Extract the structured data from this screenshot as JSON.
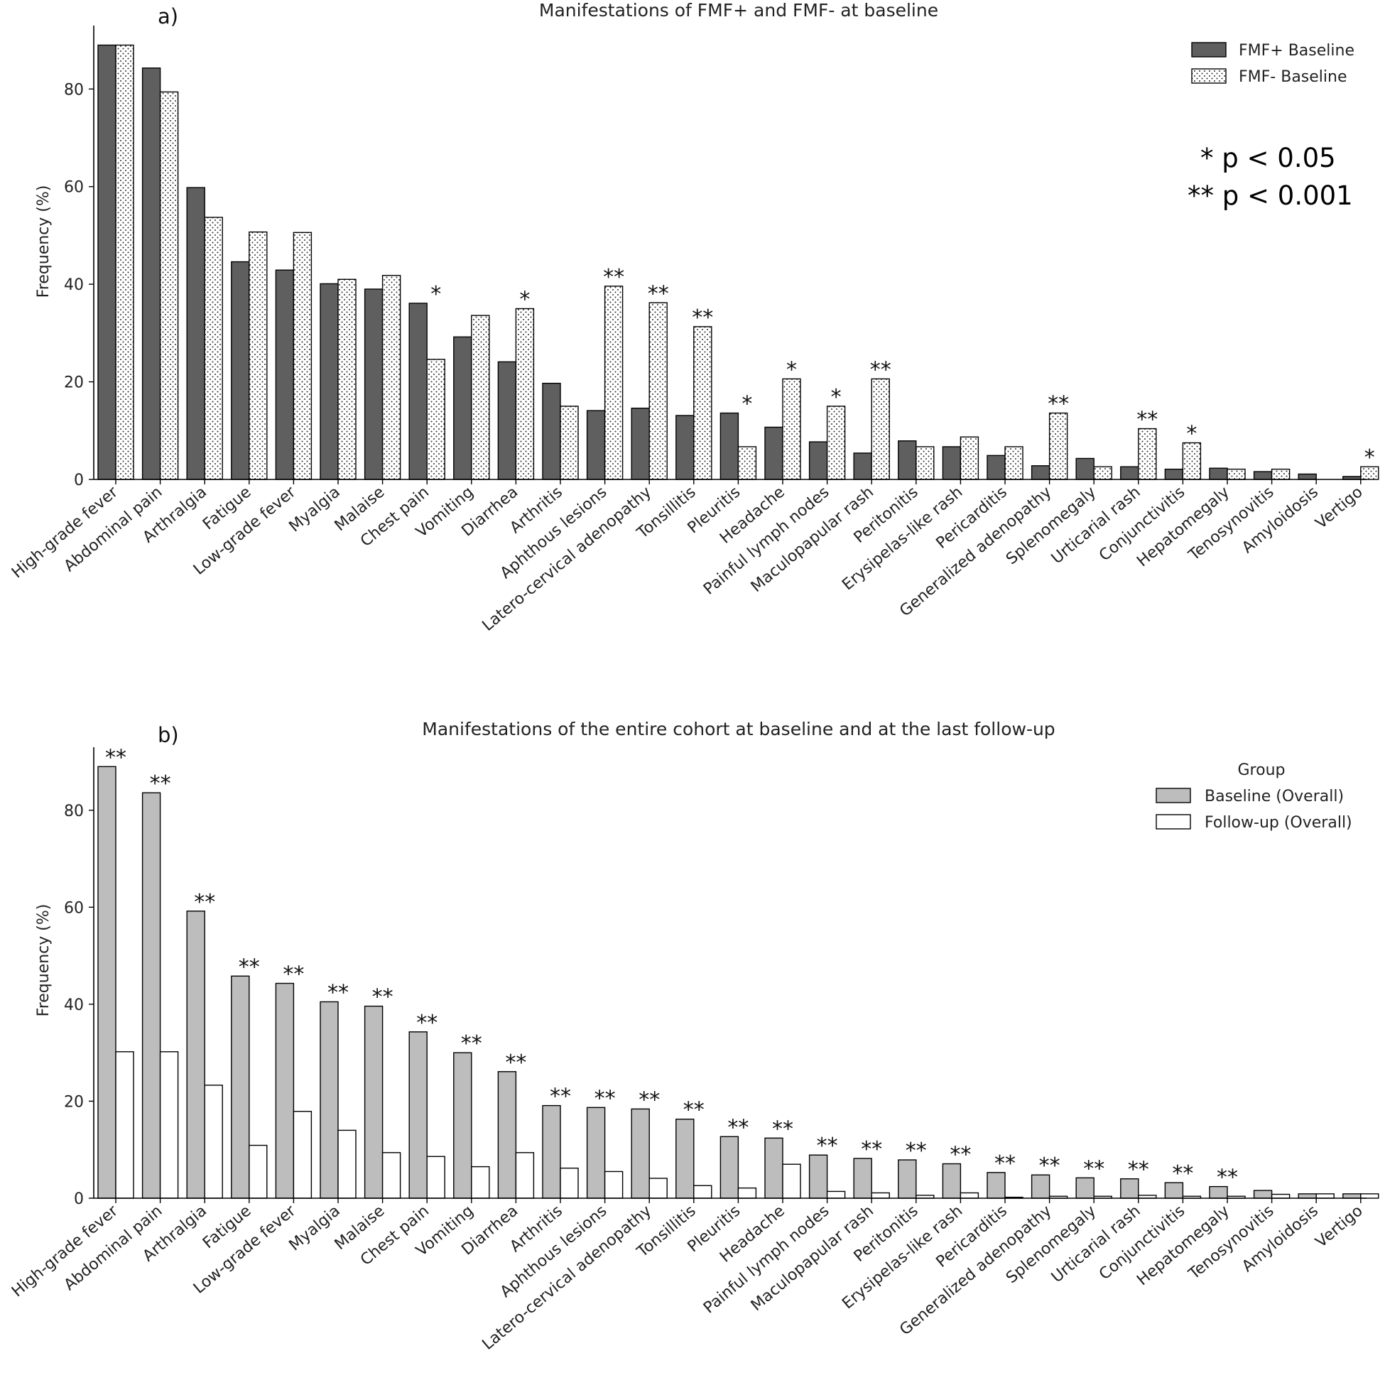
{
  "chart_data": [
    {
      "panel_label": "a)",
      "type": "bar",
      "title": "Manifestations of FMF+ and FMF- at baseline",
      "ylabel": "Frequency (%)",
      "xlabel": "",
      "ylim": [
        0,
        93
      ],
      "yticks": [
        0,
        20,
        40,
        60,
        80
      ],
      "legend": {
        "position": "top-right",
        "title": ""
      },
      "significance_note": [
        "* p < 0.05",
        "** p < 0.001"
      ],
      "categories": [
        "High-grade fever",
        "Abdominal pain",
        "Arthralgia",
        "Fatigue",
        "Low-grade fever",
        "Myalgia",
        "Malaise",
        "Chest pain",
        "Vomiting",
        "Diarrhea",
        "Arthritis",
        "Aphthous lesions",
        "Latero-cervical adenopathy",
        "Tonsillitis",
        "Pleuritis",
        "Headache",
        "Painful lymph nodes",
        "Maculopapular rash",
        "Peritonitis",
        "Erysipelas-like rash",
        "Pericarditis",
        "Generalized adenopathy",
        "Splenomegaly",
        "Urticarial rash",
        "Conjunctivitis",
        "Hepatomegaly",
        "Tenosynovitis",
        "Amyloidosis",
        "Vertigo"
      ],
      "series": [
        {
          "name": "FMF+ Baseline",
          "color": "#5f5f5f",
          "pattern": "solid",
          "values": [
            89.0,
            84.3,
            59.8,
            44.6,
            42.9,
            40.1,
            39.0,
            36.1,
            29.2,
            24.1,
            19.7,
            14.1,
            14.6,
            13.1,
            13.6,
            10.7,
            7.7,
            5.4,
            7.9,
            6.7,
            4.9,
            2.8,
            4.3,
            2.6,
            2.1,
            2.3,
            1.6,
            1.1,
            0.6
          ]
        },
        {
          "name": "FMF- Baseline",
          "color": "#ffffff",
          "pattern": "dots",
          "values": [
            89.0,
            79.4,
            53.7,
            50.7,
            50.6,
            41.0,
            41.8,
            24.6,
            33.6,
            35.0,
            15.0,
            39.6,
            36.2,
            31.3,
            6.7,
            20.6,
            15.0,
            20.6,
            6.7,
            8.7,
            6.7,
            13.6,
            2.6,
            10.4,
            7.5,
            2.1,
            2.1,
            0,
            2.6
          ]
        }
      ],
      "significance": [
        "",
        "",
        "",
        "",
        "",
        "",
        "",
        "*",
        "",
        "*",
        "",
        "**",
        "**",
        "**",
        "*",
        "*",
        "*",
        "**",
        "",
        "",
        "",
        "**",
        "",
        "**",
        "*",
        "",
        "",
        "",
        "*"
      ]
    },
    {
      "panel_label": "b)",
      "type": "bar",
      "title": "Manifestations of the entire cohort at baseline and at the last follow-up",
      "ylabel": "Frequency (%)",
      "xlabel": "",
      "ylim": [
        0,
        93
      ],
      "yticks": [
        0,
        20,
        40,
        60,
        80
      ],
      "legend": {
        "position": "top-right",
        "title": "Group"
      },
      "categories": [
        "High-grade fever",
        "Abdominal pain",
        "Arthralgia",
        "Fatigue",
        "Low-grade fever",
        "Myalgia",
        "Malaise",
        "Chest pain",
        "Vomiting",
        "Diarrhea",
        "Arthritis",
        "Aphthous lesions",
        "Latero-cervical adenopathy",
        "Tonsillitis",
        "Pleuritis",
        "Headache",
        "Painful lymph nodes",
        "Maculopapular rash",
        "Peritonitis",
        "Erysipelas-like rash",
        "Pericarditis",
        "Generalized adenopathy",
        "Splenomegaly",
        "Urticarial rash",
        "Conjunctivitis",
        "Hepatomegaly",
        "Tenosynovitis",
        "Amyloidosis",
        "Vertigo"
      ],
      "series": [
        {
          "name": "Baseline (Overall)",
          "color": "#bdbdbd",
          "pattern": "solid",
          "values": [
            89.0,
            83.6,
            59.2,
            45.8,
            44.3,
            40.5,
            39.6,
            34.3,
            30.0,
            26.1,
            19.1,
            18.7,
            18.4,
            16.3,
            12.7,
            12.4,
            8.9,
            8.2,
            7.9,
            7.1,
            5.3,
            4.8,
            4.2,
            4.0,
            3.2,
            2.4,
            1.6,
            0.9,
            0.9
          ]
        },
        {
          "name": "Follow-up (Overall)",
          "color": "#ffffff",
          "pattern": "solid",
          "values": [
            30.2,
            30.2,
            23.3,
            10.9,
            17.9,
            14.0,
            9.4,
            8.6,
            6.5,
            9.4,
            6.2,
            5.5,
            4.1,
            2.6,
            2.1,
            7.0,
            1.4,
            1.1,
            0.6,
            1.1,
            0.2,
            0.4,
            0.4,
            0.6,
            0.4,
            0.4,
            0.8,
            0.9,
            0.9
          ]
        }
      ],
      "significance": [
        "**",
        "**",
        "**",
        "**",
        "**",
        "**",
        "**",
        "**",
        "**",
        "**",
        "**",
        "**",
        "**",
        "**",
        "**",
        "**",
        "**",
        "**",
        "**",
        "**",
        "**",
        "**",
        "**",
        "**",
        "**",
        "**",
        "",
        "",
        ""
      ]
    }
  ]
}
